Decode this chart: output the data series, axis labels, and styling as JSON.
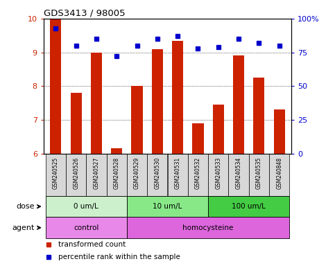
{
  "title": "GDS3413 / 98005",
  "samples": [
    "GSM240525",
    "GSM240526",
    "GSM240527",
    "GSM240528",
    "GSM240529",
    "GSM240530",
    "GSM240531",
    "GSM240532",
    "GSM240533",
    "GSM240534",
    "GSM240535",
    "GSM240848"
  ],
  "bar_values": [
    10.0,
    7.8,
    9.0,
    6.15,
    8.0,
    9.1,
    9.35,
    6.9,
    7.45,
    8.9,
    8.25,
    7.3
  ],
  "percentile_values": [
    93,
    80,
    85,
    72,
    80,
    85,
    87,
    78,
    79,
    85,
    82,
    80
  ],
  "bar_color": "#cc2200",
  "percentile_color": "#0000cc",
  "ylim_left": [
    6,
    10
  ],
  "ylim_right": [
    0,
    100
  ],
  "yticks_left": [
    6,
    7,
    8,
    9,
    10
  ],
  "yticks_right": [
    0,
    25,
    50,
    75,
    100
  ],
  "ytick_labels_right": [
    "0",
    "25",
    "50",
    "75",
    "100%"
  ],
  "grid_color": "#000000",
  "sample_bg": "#d8d8d8",
  "plot_bg": "#ffffff",
  "dose_groups": [
    {
      "label": "0 um/L",
      "start": 0,
      "end": 4,
      "color": "#ccf0cc"
    },
    {
      "label": "10 um/L",
      "start": 4,
      "end": 8,
      "color": "#88e888"
    },
    {
      "label": "100 um/L",
      "start": 8,
      "end": 12,
      "color": "#44cc44"
    }
  ],
  "agent_groups": [
    {
      "label": "control",
      "start": 0,
      "end": 4,
      "color": "#e888e8"
    },
    {
      "label": "homocysteine",
      "start": 4,
      "end": 12,
      "color": "#dd66dd"
    }
  ],
  "dose_label": "dose",
  "agent_label": "agent",
  "legend_bar": "transformed count",
  "legend_pct": "percentile rank within the sample",
  "tick_label_color_left": "#cc2200",
  "tick_label_color_right": "#0000cc"
}
